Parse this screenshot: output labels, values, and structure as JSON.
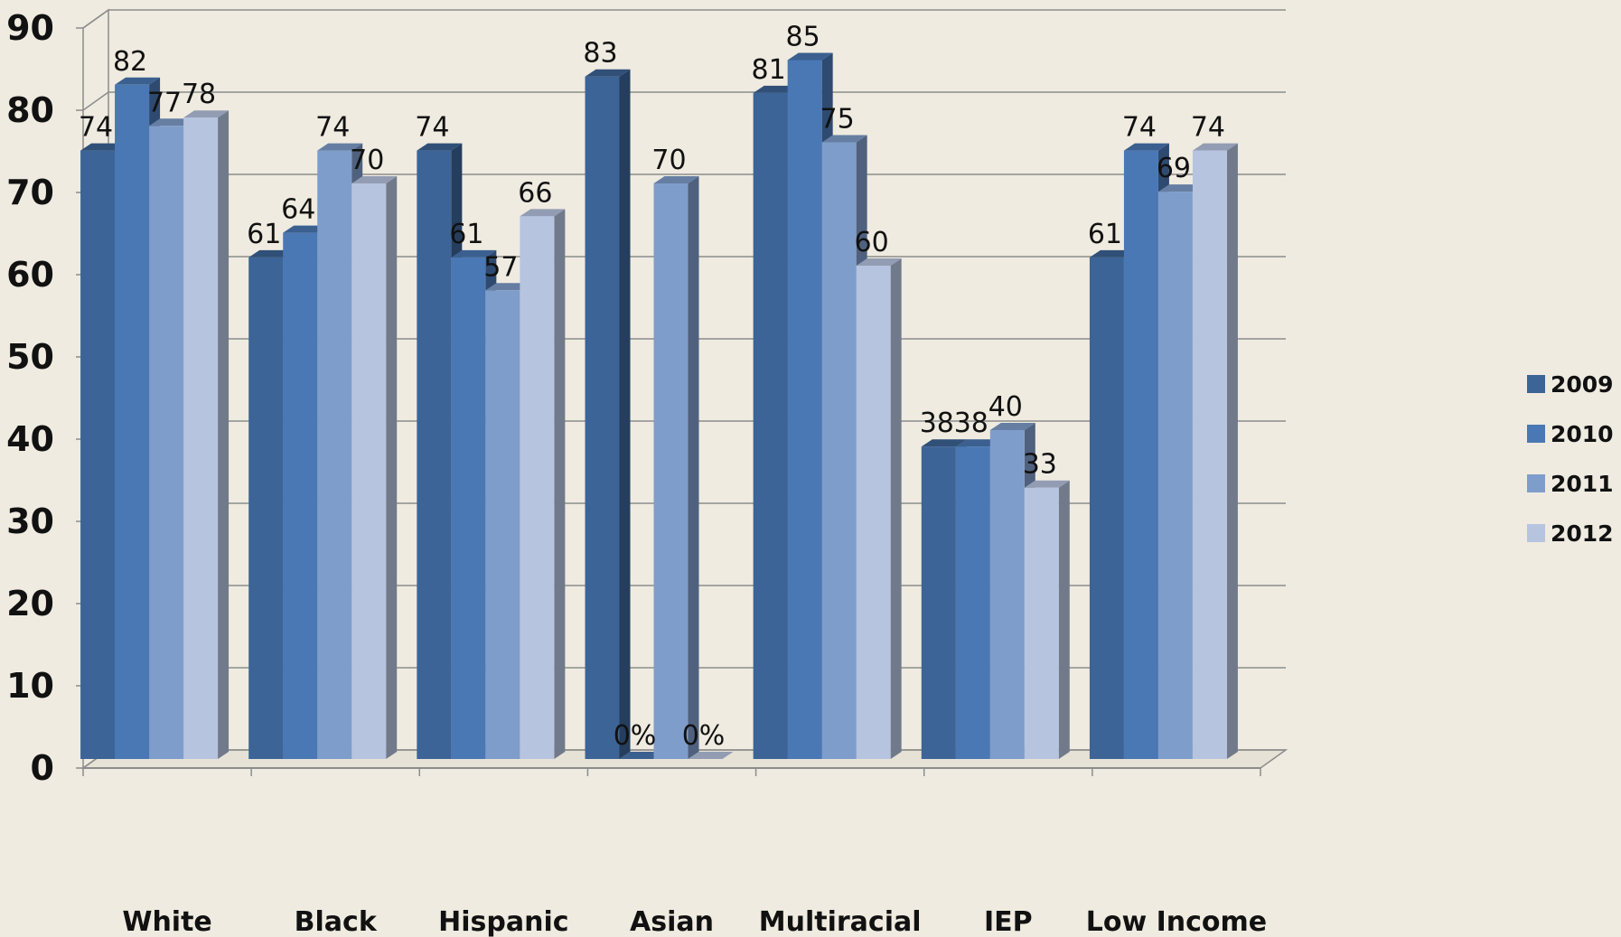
{
  "chart_data": {
    "type": "bar",
    "categories": [
      "White",
      "Black",
      "Hispanic",
      "Asian",
      "Multiracial",
      "IEP",
      "Low Income"
    ],
    "series": [
      {
        "name": "2009",
        "color": "#3c6496",
        "values": [
          74,
          61,
          74,
          83,
          81,
          38,
          61
        ]
      },
      {
        "name": "2010",
        "color": "#4a78b4",
        "values": [
          82,
          64,
          61,
          0,
          85,
          38,
          74
        ]
      },
      {
        "name": "2011",
        "color": "#7f9dcb",
        "values": [
          77,
          74,
          57,
          70,
          75,
          40,
          69
        ]
      },
      {
        "name": "2012",
        "color": "#b6c4e0",
        "values": [
          78,
          70,
          66,
          0,
          60,
          33,
          74
        ]
      }
    ],
    "data_labels": [
      [
        "74",
        "61",
        "74",
        "83",
        "81",
        "38",
        "61"
      ],
      [
        "82",
        "64",
        "61",
        "0%",
        "85",
        "38",
        "74"
      ],
      [
        "77",
        "74",
        "57",
        "70",
        "75",
        "40",
        "69"
      ],
      [
        "78",
        "70",
        "66",
        "0%",
        "60",
        "33",
        "74"
      ]
    ],
    "yticks": [
      0,
      10,
      20,
      30,
      40,
      50,
      60,
      70,
      80,
      90
    ],
    "ylim": [
      0,
      90
    ],
    "grid": true,
    "legend_position": "right",
    "three_d": true
  }
}
